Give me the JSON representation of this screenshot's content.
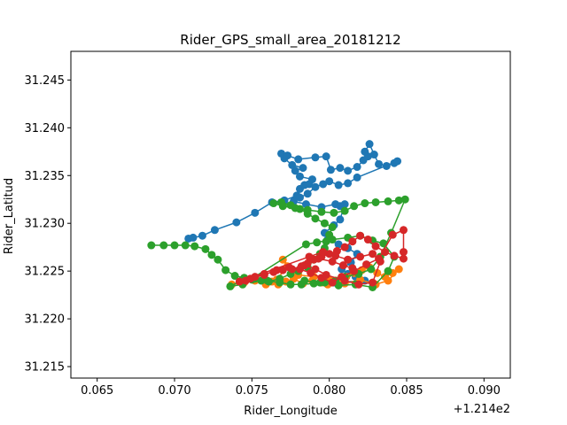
{
  "chart_data": {
    "type": "scatter",
    "title": "Rider_GPS_small_area_20181212",
    "xlabel": "Rider_Longitude",
    "ylabel": "Rider_Latitud",
    "x_offset_label": "+1.214e2",
    "xlim": [
      0.0633,
      0.0917
    ],
    "ylim": [
      31.2138,
      31.248
    ],
    "xticks": [
      0.065,
      0.07,
      0.075,
      0.08,
      0.085,
      0.09
    ],
    "xtick_labels": [
      "0.065",
      "0.070",
      "0.075",
      "0.080",
      "0.085",
      "0.090"
    ],
    "yticks": [
      31.215,
      31.22,
      31.225,
      31.23,
      31.235,
      31.24,
      31.245
    ],
    "ytick_labels": [
      "31.215",
      "31.220",
      "31.225",
      "31.230",
      "31.235",
      "31.240",
      "31.245"
    ],
    "grid": false,
    "series": [
      {
        "color": "#1f77b4",
        "points": [
          [
            0.0709,
            31.2284
          ],
          [
            0.0712,
            31.2285
          ],
          [
            0.0718,
            31.2287
          ],
          [
            0.0726,
            31.2293
          ],
          [
            0.074,
            31.2301
          ],
          [
            0.0752,
            31.2311
          ],
          [
            0.0763,
            31.2322
          ],
          [
            0.0771,
            31.2324
          ],
          [
            0.0779,
            31.2329
          ],
          [
            0.0781,
            31.2336
          ],
          [
            0.0784,
            31.234
          ],
          [
            0.0787,
            31.2341
          ],
          [
            0.0789,
            31.2346
          ],
          [
            0.0781,
            31.2349
          ],
          [
            0.0778,
            31.2355
          ],
          [
            0.0783,
            31.2358
          ],
          [
            0.0776,
            31.2361
          ],
          [
            0.0771,
            31.2368
          ],
          [
            0.0769,
            31.2373
          ],
          [
            0.0773,
            31.2371
          ],
          [
            0.078,
            31.2367
          ],
          [
            0.0791,
            31.2369
          ],
          [
            0.0798,
            31.237
          ],
          [
            0.0801,
            31.2356
          ],
          [
            0.0807,
            31.2358
          ],
          [
            0.0812,
            31.2355
          ],
          [
            0.0818,
            31.2359
          ],
          [
            0.0822,
            31.2366
          ],
          [
            0.0825,
            31.237
          ],
          [
            0.0823,
            31.2375
          ],
          [
            0.0826,
            31.2383
          ],
          [
            0.0829,
            31.2372
          ],
          [
            0.0832,
            31.2362
          ],
          [
            0.0837,
            31.236
          ],
          [
            0.0842,
            31.2363
          ],
          [
            0.0844,
            31.2365
          ],
          [
            0.0818,
            31.2348
          ],
          [
            0.0812,
            31.2342
          ],
          [
            0.0806,
            31.234
          ],
          [
            0.08,
            31.2344
          ],
          [
            0.0796,
            31.2341
          ],
          [
            0.0791,
            31.2338
          ],
          [
            0.0786,
            31.2331
          ],
          [
            0.0781,
            31.2327
          ],
          [
            0.0777,
            31.2323
          ],
          [
            0.0785,
            31.232
          ],
          [
            0.0795,
            31.2317
          ],
          [
            0.0804,
            31.232
          ],
          [
            0.0807,
            31.2318
          ],
          [
            0.081,
            31.232
          ],
          [
            0.0807,
            31.2304
          ],
          [
            0.0803,
            31.2298
          ],
          [
            0.0797,
            31.229
          ],
          [
            0.0799,
            31.2283
          ],
          [
            0.0806,
            31.2278
          ],
          [
            0.0812,
            31.2274
          ],
          [
            0.0818,
            31.2268
          ],
          [
            0.0814,
            31.2259
          ],
          [
            0.0808,
            31.2252
          ],
          [
            0.0812,
            31.2247
          ],
          [
            0.0817,
            31.2244
          ],
          [
            0.0823,
            31.224
          ],
          [
            0.0803,
            31.2238
          ],
          [
            0.0797,
            31.2243
          ]
        ]
      },
      {
        "color": "#ff7f0e",
        "points": [
          [
            0.0737,
            31.2236
          ],
          [
            0.0745,
            31.2238
          ],
          [
            0.0752,
            31.224
          ],
          [
            0.0759,
            31.2236
          ],
          [
            0.0763,
            31.2239
          ],
          [
            0.0767,
            31.2236
          ],
          [
            0.0772,
            31.2239
          ],
          [
            0.0777,
            31.2242
          ],
          [
            0.0783,
            31.2237
          ],
          [
            0.0789,
            31.224
          ],
          [
            0.0795,
            31.2238
          ],
          [
            0.0799,
            31.2236
          ],
          [
            0.0805,
            31.224
          ],
          [
            0.0811,
            31.2244
          ],
          [
            0.0816,
            31.2248
          ],
          [
            0.0821,
            31.2251
          ],
          [
            0.0826,
            31.2254
          ],
          [
            0.0831,
            31.2248
          ],
          [
            0.0836,
            31.2244
          ],
          [
            0.0841,
            31.2248
          ],
          [
            0.0845,
            31.2252
          ],
          [
            0.0838,
            31.224
          ],
          [
            0.083,
            31.2236
          ],
          [
            0.082,
            31.2241
          ],
          [
            0.081,
            31.2237
          ],
          [
            0.08,
            31.2241
          ],
          [
            0.079,
            31.2244
          ],
          [
            0.078,
            31.2246
          ],
          [
            0.077,
            31.2262
          ],
          [
            0.0773,
            31.2255
          ],
          [
            0.0766,
            31.2241
          ]
        ]
      },
      {
        "color": "#2ca02c",
        "points": [
          [
            0.0685,
            31.2277
          ],
          [
            0.0693,
            31.2277
          ],
          [
            0.07,
            31.2277
          ],
          [
            0.0707,
            31.2277
          ],
          [
            0.0713,
            31.2276
          ],
          [
            0.072,
            31.2273
          ],
          [
            0.0724,
            31.2267
          ],
          [
            0.0728,
            31.2262
          ],
          [
            0.0733,
            31.2251
          ],
          [
            0.0739,
            31.2245
          ],
          [
            0.0745,
            31.2243
          ],
          [
            0.075,
            31.2241
          ],
          [
            0.0756,
            31.224
          ],
          [
            0.0761,
            31.2239
          ],
          [
            0.0768,
            31.2242
          ],
          [
            0.0775,
            31.2247
          ],
          [
            0.078,
            31.225
          ],
          [
            0.0786,
            31.2254
          ],
          [
            0.079,
            31.2262
          ],
          [
            0.0794,
            31.2268
          ],
          [
            0.0797,
            31.2274
          ],
          [
            0.0798,
            31.2281
          ],
          [
            0.08,
            31.2288
          ],
          [
            0.0802,
            31.2296
          ],
          [
            0.0797,
            31.23
          ],
          [
            0.0791,
            31.2305
          ],
          [
            0.0786,
            31.231
          ],
          [
            0.0781,
            31.2315
          ],
          [
            0.0775,
            31.2319
          ],
          [
            0.0769,
            31.2322
          ],
          [
            0.0764,
            31.2321
          ],
          [
            0.077,
            31.2318
          ],
          [
            0.0778,
            31.2316
          ],
          [
            0.0786,
            31.2314
          ],
          [
            0.0795,
            31.2312
          ],
          [
            0.0803,
            31.2311
          ],
          [
            0.081,
            31.2313
          ],
          [
            0.0816,
            31.2318
          ],
          [
            0.0823,
            31.2321
          ],
          [
            0.083,
            31.2322
          ],
          [
            0.0838,
            31.2323
          ],
          [
            0.0845,
            31.2324
          ],
          [
            0.0849,
            31.2325
          ],
          [
            0.084,
            31.229
          ],
          [
            0.0833,
            31.2265
          ],
          [
            0.0827,
            31.2252
          ],
          [
            0.0819,
            31.2247
          ],
          [
            0.081,
            31.2244
          ],
          [
            0.0804,
            31.224
          ],
          [
            0.0797,
            31.2238
          ],
          [
            0.079,
            31.2237
          ],
          [
            0.0782,
            31.2236
          ],
          [
            0.0775,
            31.2236
          ],
          [
            0.0768,
            31.2238
          ],
          [
            0.076,
            31.224
          ],
          [
            0.0752,
            31.2242
          ],
          [
            0.0744,
            31.2241
          ],
          [
            0.0736,
            31.2234
          ],
          [
            0.0744,
            31.2236
          ],
          [
            0.0785,
            31.2278
          ],
          [
            0.0792,
            31.228
          ],
          [
            0.0802,
            31.2283
          ],
          [
            0.0812,
            31.2285
          ],
          [
            0.082,
            31.2287
          ],
          [
            0.0828,
            31.2282
          ],
          [
            0.0835,
            31.2279
          ],
          [
            0.0842,
            31.2265
          ],
          [
            0.0838,
            31.225
          ],
          [
            0.0828,
            31.2233
          ],
          [
            0.0817,
            31.2236
          ],
          [
            0.0806,
            31.2235
          ],
          [
            0.0794,
            31.2238
          ],
          [
            0.0784,
            31.224
          ]
        ]
      },
      {
        "color": "#d62728",
        "points": [
          [
            0.0746,
            31.224
          ],
          [
            0.0752,
            31.2244
          ],
          [
            0.0758,
            31.2247
          ],
          [
            0.0764,
            31.2249
          ],
          [
            0.077,
            31.2251
          ],
          [
            0.0776,
            31.2252
          ],
          [
            0.0782,
            31.2255
          ],
          [
            0.0786,
            31.2258
          ],
          [
            0.079,
            31.2262
          ],
          [
            0.0795,
            31.2265
          ],
          [
            0.08,
            31.2268
          ],
          [
            0.0805,
            31.2271
          ],
          [
            0.081,
            31.2275
          ],
          [
            0.0815,
            31.2281
          ],
          [
            0.082,
            31.2287
          ],
          [
            0.0825,
            31.2283
          ],
          [
            0.083,
            31.2276
          ],
          [
            0.0836,
            31.227
          ],
          [
            0.0842,
            31.2266
          ],
          [
            0.0848,
            31.2263
          ],
          [
            0.0848,
            31.227
          ],
          [
            0.0848,
            31.2293
          ],
          [
            0.0841,
            31.2288
          ],
          [
            0.0832,
            31.2263
          ],
          [
            0.0824,
            31.2257
          ],
          [
            0.0816,
            31.225
          ],
          [
            0.0808,
            31.2244
          ],
          [
            0.0802,
            31.2238
          ],
          [
            0.0795,
            31.2243
          ],
          [
            0.0788,
            31.2248
          ],
          [
            0.0781,
            31.2252
          ],
          [
            0.0774,
            31.2254
          ],
          [
            0.0766,
            31.2251
          ],
          [
            0.0758,
            31.2246
          ],
          [
            0.0749,
            31.2242
          ],
          [
            0.0742,
            31.2239
          ],
          [
            0.0787,
            31.2265
          ],
          [
            0.0796,
            31.227
          ],
          [
            0.0804,
            31.2266
          ],
          [
            0.0812,
            31.2262
          ],
          [
            0.082,
            31.2265
          ],
          [
            0.0828,
            31.2268
          ],
          [
            0.0833,
            31.226
          ],
          [
            0.0828,
            31.2238
          ],
          [
            0.0819,
            31.2236
          ],
          [
            0.081,
            31.224
          ],
          [
            0.0798,
            31.2246
          ],
          [
            0.0791,
            31.2252
          ],
          [
            0.0784,
            31.2256
          ],
          [
            0.0793,
            31.2263
          ],
          [
            0.0802,
            31.226
          ],
          [
            0.0809,
            31.2256
          ],
          [
            0.0815,
            31.2253
          ]
        ]
      }
    ]
  }
}
